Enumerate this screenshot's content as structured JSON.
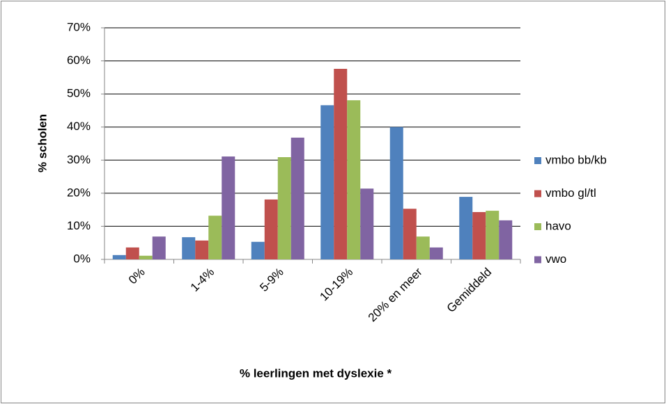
{
  "chart_data": {
    "type": "bar",
    "x_label": "% leerlingen met dyslexie *",
    "y_label": "% scholen",
    "categories": [
      "0%",
      "1-4%",
      "5-9%",
      "10-19%",
      "20% en meer",
      "Gemiddeld"
    ],
    "series": [
      {
        "name": "vmbo bb/kb",
        "color": "#4f81bd",
        "values": [
          1.3,
          6.7,
          5.3,
          46.6,
          40,
          18.9
        ]
      },
      {
        "name": "vmbo gl/tl",
        "color": "#c0504d",
        "values": [
          3.6,
          5.7,
          18.1,
          57.6,
          15.3,
          14.3
        ]
      },
      {
        "name": "havo",
        "color": "#9bbb59",
        "values": [
          1.1,
          13.2,
          30.9,
          48.1,
          6.9,
          14.7
        ]
      },
      {
        "name": "vwo",
        "color": "#8064a2",
        "values": [
          6.9,
          31.1,
          36.8,
          21.4,
          3.6,
          11.8
        ]
      }
    ],
    "ylim": [
      0,
      70
    ],
    "yticks": [
      {
        "value": 0,
        "label": "0%"
      },
      {
        "value": 10,
        "label": "10%"
      },
      {
        "value": 20,
        "label": "20%"
      },
      {
        "value": 30,
        "label": "30%"
      },
      {
        "value": 40,
        "label": "40%"
      },
      {
        "value": 50,
        "label": "50%"
      },
      {
        "value": 60,
        "label": "60%"
      },
      {
        "value": 70,
        "label": "70%"
      }
    ],
    "grid": true,
    "legend": "right"
  }
}
